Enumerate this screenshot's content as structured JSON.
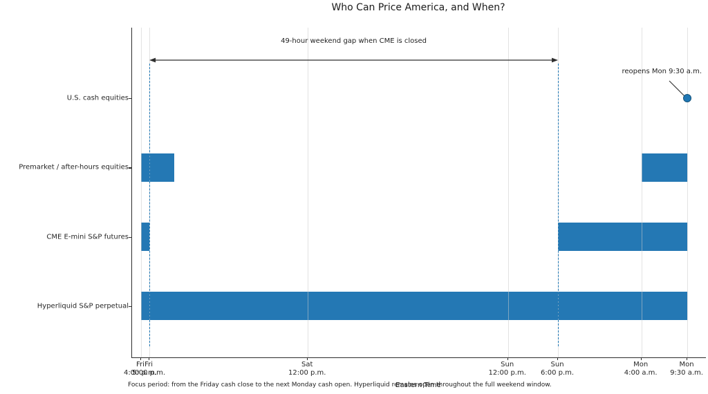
{
  "title": "Who Can Price America, and When?",
  "footnote": "Focus period: from the Friday cash close to the next Monday cash open. Hyperliquid remains open throughout the full weekend window.",
  "chart_data": {
    "type": "timeline",
    "title": "Who Can Price America, and When?",
    "xlabel": "Eastern Time",
    "x_unit": "hours after Friday 4:00 p.m. Eastern Time",
    "xlim": [
      0,
      65.5
    ],
    "grid": "vertical line at every x tick",
    "legend": "none",
    "x_ticks": [
      {
        "day": "Fri",
        "time": "4:00 p.m.",
        "t": 0
      },
      {
        "day": "Fri",
        "time": "5:00 p.m.",
        "t": 1
      },
      {
        "day": "Sat",
        "time": "12:00 p.m.",
        "t": 20
      },
      {
        "day": "Sun",
        "time": "12:00 p.m.",
        "t": 44
      },
      {
        "day": "Sun",
        "time": "6:00 p.m.",
        "t": 50
      },
      {
        "day": "Mon",
        "time": "4:00 a.m.",
        "t": 60
      },
      {
        "day": "Mon",
        "time": "9:30 a.m.",
        "t": 65.5
      }
    ],
    "rows": [
      {
        "label": "U.S. cash equities",
        "segments": [],
        "marker": {
          "t": 65.5
        }
      },
      {
        "label": "Premarket / after-hours equities",
        "segments": [
          [
            0,
            4
          ],
          [
            60,
            65.5
          ]
        ]
      },
      {
        "label": "CME E-mini S&P futures",
        "segments": [
          [
            0,
            1
          ],
          [
            50,
            65.5
          ]
        ]
      },
      {
        "label": "Hyperliquid S&P perpetual",
        "segments": [
          [
            0,
            65.5
          ]
        ]
      }
    ],
    "annotations": {
      "gap_label": "49-hour weekend gap when CME is closed",
      "gap_from_t": 1,
      "gap_to_t": 50,
      "reopen_label": "reopens Mon 9:30 a.m.",
      "reopen_t": 65.5,
      "reopen_row": 0
    },
    "colors": {
      "bar": "#2478b4",
      "dashed_line": "#1f77b4",
      "marker": "#1f77b4",
      "grid": "#cacaca",
      "arrow": "#2e2e2e",
      "text": "#262626"
    }
  }
}
